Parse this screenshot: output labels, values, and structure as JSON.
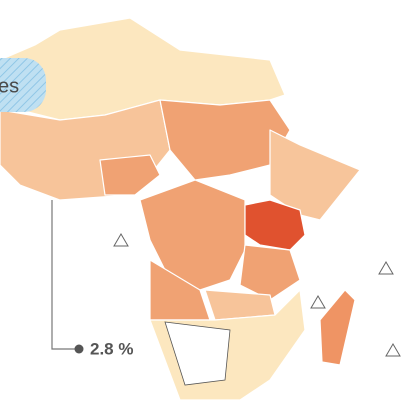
{
  "bubble": {
    "text": "es"
  },
  "callout": {
    "text": "2.8 %"
  }
}
